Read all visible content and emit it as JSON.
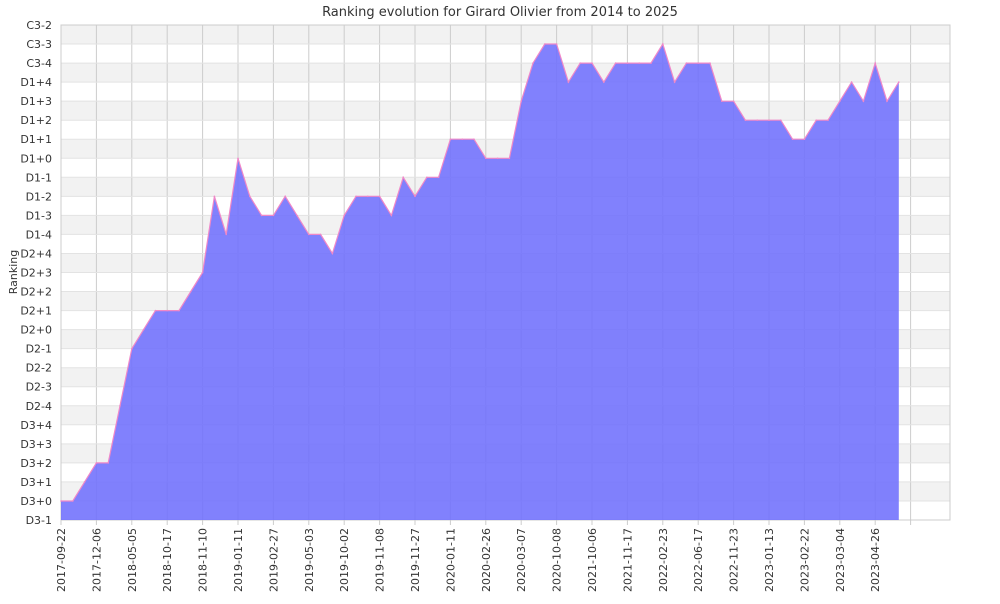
{
  "chart_data": {
    "type": "area",
    "title": "Ranking evolution for Girard Olivier from 2014 to 2025",
    "xlabel": "",
    "ylabel": "Ranking",
    "y_ticks": [
      "D3-1",
      "D3+0",
      "D3+1",
      "D3+2",
      "D3+3",
      "D3+4",
      "D2-4",
      "D2-3",
      "D2-2",
      "D2-1",
      "D2+0",
      "D2+1",
      "D2+2",
      "D2+3",
      "D2+4",
      "D1-4",
      "D1-3",
      "D1-2",
      "D1-1",
      "D1+0",
      "D1+1",
      "D1+2",
      "D1+3",
      "D1+4",
      "C3-4",
      "C3-3",
      "C3-2"
    ],
    "x_ticks": [
      {
        "label": "2017-09-22",
        "index": 0
      },
      {
        "label": "2017-12-06",
        "index": 3
      },
      {
        "label": "2018-05-05",
        "index": 6
      },
      {
        "label": "2018-10-17",
        "index": 9
      },
      {
        "label": "2018-11-10",
        "index": 12
      },
      {
        "label": "2019-01-11",
        "index": 15
      },
      {
        "label": "2019-02-27",
        "index": 18
      },
      {
        "label": "2019-05-03",
        "index": 21
      },
      {
        "label": "2019-10-02",
        "index": 24
      },
      {
        "label": "2019-11-08",
        "index": 27
      },
      {
        "label": "2019-11-27",
        "index": 30
      },
      {
        "label": "2020-01-11",
        "index": 33
      },
      {
        "label": "2020-02-26",
        "index": 36
      },
      {
        "label": "2020-03-07",
        "index": 39
      },
      {
        "label": "2020-10-08",
        "index": 42
      },
      {
        "label": "2021-10-06",
        "index": 45
      },
      {
        "label": "2021-11-17",
        "index": 48
      },
      {
        "label": "2022-02-23",
        "index": 51
      },
      {
        "label": "2022-06-17",
        "index": 54
      },
      {
        "label": "2022-11-23",
        "index": 57
      },
      {
        "label": "2023-01-13",
        "index": 60
      },
      {
        "label": "2023-02-22",
        "index": 63
      },
      {
        "label": "2023-03-04",
        "index": 66
      },
      {
        "label": "2023-04-26",
        "index": 69
      }
    ],
    "series": [
      {
        "values": [
          1,
          1,
          2,
          3,
          3,
          6,
          9,
          10,
          11,
          11,
          11,
          12,
          13,
          17,
          15,
          19,
          17,
          16,
          16,
          17,
          16,
          15,
          15,
          14,
          16,
          17,
          17,
          17,
          16,
          18,
          17,
          18,
          18,
          20,
          20,
          20,
          19,
          19,
          19,
          22,
          24,
          25,
          25,
          23,
          24,
          24,
          23,
          24,
          24,
          24,
          24,
          25,
          23,
          24,
          24,
          24,
          22,
          22,
          21,
          21,
          21,
          21,
          20,
          20,
          21,
          21,
          22,
          23,
          22,
          24,
          22,
          23
        ]
      }
    ],
    "ylim": [
      0,
      26
    ],
    "grid": true,
    "legend": "none",
    "colors": {
      "fill": "#6f6ffd",
      "line": "#f088c8",
      "band": "#f2f2f2",
      "grid": "#cccccc"
    }
  }
}
